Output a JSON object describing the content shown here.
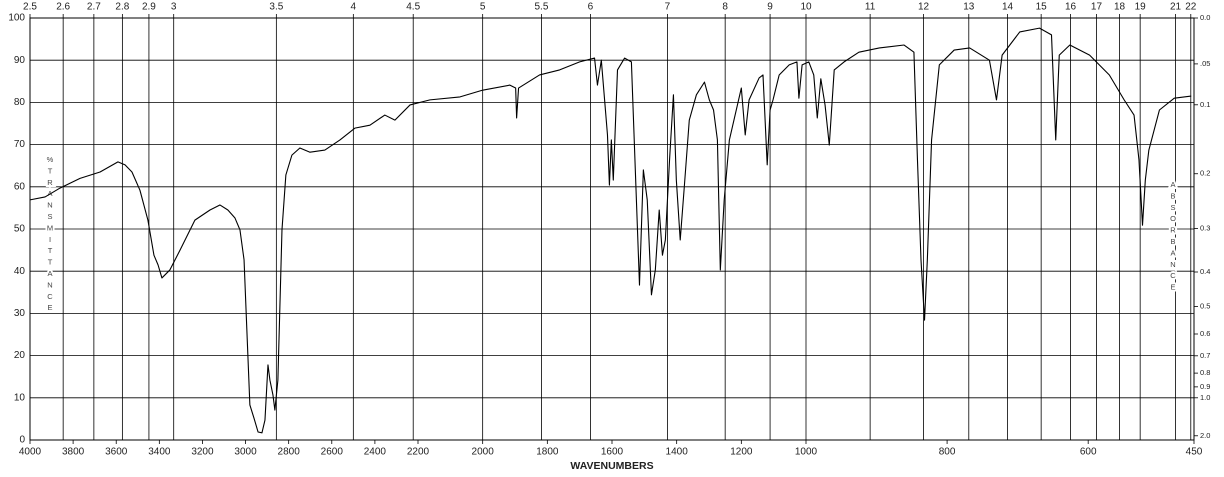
{
  "chart_data": {
    "type": "line",
    "x_label": "WAVENUMBERS",
    "y_label": "%TRANSMITTANCE",
    "y2_label": "ABSORBANCE",
    "color": "#000000",
    "grid": true,
    "xlim": [
      4000,
      450
    ],
    "xbreaks": [
      2200,
      1000
    ],
    "xticks": [
      4000,
      3800,
      3600,
      3400,
      3200,
      3000,
      2800,
      2600,
      2400,
      2200,
      2000,
      1800,
      1600,
      1400,
      1200,
      1000,
      800,
      600,
      450
    ],
    "x2ticks": [
      2.5,
      2.6,
      2.7,
      2.8,
      2.9,
      3,
      3.5,
      4,
      4.5,
      5,
      5.5,
      6,
      7,
      8,
      9,
      10,
      11,
      12,
      13,
      14,
      15,
      16,
      17,
      18,
      19,
      21,
      22
    ],
    "ylim": [
      0,
      100
    ],
    "yticks": [
      0,
      10,
      20,
      30,
      40,
      50,
      60,
      70,
      80,
      90,
      100
    ],
    "y2lim": [
      0,
      2
    ],
    "y2ticks": [
      {
        "value": 0,
        "label": "0.0"
      },
      {
        "value": 0.05,
        "label": ".05"
      },
      0.1,
      0.2,
      0.3,
      0.4,
      0.5,
      0.6,
      0.7,
      0.8,
      0.9,
      {
        "value": 1,
        "label": "1.0"
      },
      {
        "value": 2,
        "label": "2.0"
      }
    ],
    "x": [
      4000,
      3930,
      3861,
      3768,
      3675,
      3592,
      3559,
      3527,
      3490,
      3453,
      3425,
      3406,
      3388,
      3351,
      3304,
      3235,
      3165,
      3119,
      3082,
      3049,
      3026,
      3007,
      2994,
      2980,
      2961,
      2942,
      2924,
      2910,
      2896,
      2887,
      2873,
      2864,
      2850,
      2831,
      2813,
      2785,
      2748,
      2701,
      2632,
      2562,
      2493,
      2423,
      2354,
      2307,
      2237,
      2163,
      2070,
      2000,
      1916,
      1898,
      1895,
      1889,
      1824,
      1762,
      1700,
      1654,
      1645,
      1633,
      1614,
      1608,
      1602,
      1596,
      1583,
      1561,
      1540,
      1515,
      1503,
      1491,
      1478,
      1466,
      1454,
      1444,
      1435,
      1422,
      1410,
      1401,
      1389,
      1376,
      1361,
      1339,
      1314,
      1299,
      1286,
      1274,
      1265,
      1253,
      1237,
      1212,
      1200,
      1188,
      1176,
      1145,
      1133,
      1120,
      1111,
      1102,
      1083,
      1052,
      1028,
      1022,
      1012,
      996,
      989,
      984,
      979,
      973,
      967,
      960,
      946,
      925,
      896,
      861,
      847,
      842,
      837,
      832,
      828,
      822,
      811,
      790,
      768,
      740,
      730,
      722,
      697,
      669,
      652,
      646,
      641,
      626,
      598,
      570,
      549,
      535,
      528,
      523,
      519,
      514,
      499,
      478,
      454
    ],
    "values": [
      56.9,
      57.6,
      59.7,
      62,
      63.5,
      65.9,
      65.2,
      63.5,
      59.2,
      52.1,
      43.8,
      41.5,
      38.4,
      40.3,
      45,
      52.1,
      54.5,
      55.7,
      54.5,
      52.6,
      49.8,
      42.7,
      26.1,
      8.3,
      5.2,
      1.9,
      1.7,
      4.7,
      17.8,
      14.2,
      10.7,
      7.1,
      14.2,
      49.8,
      62.8,
      67.5,
      69.2,
      68.2,
      68.7,
      71.1,
      73.9,
      74.6,
      77,
      75.8,
      79.4,
      80.6,
      81.3,
      82.9,
      84.1,
      83.4,
      76.3,
      83.4,
      86.5,
      87.7,
      89.6,
      90.5,
      84.1,
      90,
      72.3,
      60.4,
      71.1,
      61.6,
      87.7,
      90.5,
      89.6,
      36.7,
      64,
      56.9,
      34.4,
      40.3,
      54.5,
      43.8,
      47.4,
      66.4,
      81.8,
      61.6,
      47.4,
      60.4,
      75.8,
      81.8,
      84.8,
      80.6,
      78.2,
      71.1,
      40.3,
      56.9,
      71.1,
      79.4,
      83.4,
      72.3,
      80.6,
      85.8,
      86.5,
      65.2,
      78.2,
      80.6,
      86.5,
      88.9,
      89.6,
      81,
      88.9,
      89.6,
      86.5,
      76.3,
      85.6,
      79.4,
      69.9,
      87.7,
      89.6,
      91.9,
      92.9,
      93.6,
      91.9,
      66.4,
      42.7,
      28.4,
      42.7,
      71.1,
      88.9,
      92.4,
      92.9,
      90,
      80.6,
      91.2,
      96.7,
      97.6,
      96,
      71.1,
      91.2,
      93.6,
      91.2,
      86.5,
      80.6,
      77,
      66.4,
      50.9,
      61.6,
      68.7,
      78.2,
      81,
      81.5
    ]
  }
}
